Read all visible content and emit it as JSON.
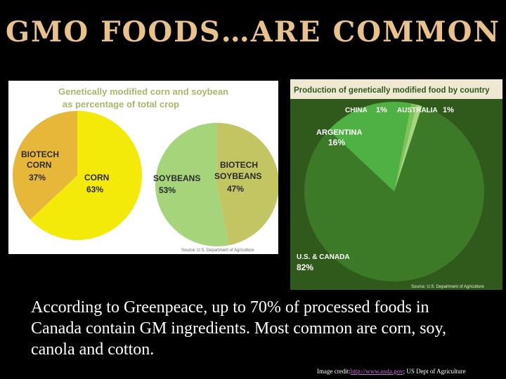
{
  "slide": {
    "title": "GMO FOODS…ARE COMMON",
    "body": "According to Greenpeace, up to 70% of processed foods in Canada contain GM ingredients.  Most common are corn, soy, canola and cotton.",
    "credit_prefix": "Image credit:",
    "credit_link": "http://www.usda.gov",
    "credit_suffix": "; US Dept of Agriculture"
  },
  "chart_data": [
    {
      "type": "pie",
      "title": "Genetically modified corn and soybean",
      "subtitle": "as percentage of total crop",
      "crop": "CORN",
      "slices": [
        {
          "label": "CORN",
          "value": 63,
          "value_label": "63%",
          "color": "#f4ea0a"
        },
        {
          "label": "BIOTECH CORN",
          "label_lines": [
            "BIOTECH",
            "CORN"
          ],
          "value": 37,
          "value_label": "37%",
          "color": "#e7b73a"
        }
      ]
    },
    {
      "type": "pie",
      "crop": "SOYBEANS",
      "slices": [
        {
          "label": "SOYBEANS",
          "value": 53,
          "value_label": "53%",
          "color": "#a6d47b"
        },
        {
          "label": "BIOTECH SOYBEANS",
          "label_lines": [
            "BIOTECH",
            "SOYBEANS"
          ],
          "value": 47,
          "value_label": "47%",
          "color": "#c3c462"
        }
      ],
      "source": "Source: U.S. Department of Agriculture"
    },
    {
      "type": "pie",
      "title": "Production of genetically modified food by country",
      "slices": [
        {
          "label": "U.S. & CANADA",
          "value": 82,
          "value_label": "82%",
          "color": "#3c7a28"
        },
        {
          "label": "ARGENTINA",
          "value": 16,
          "value_label": "16%",
          "color": "#4fb043"
        },
        {
          "label": "CHINA",
          "value": 1,
          "value_label": "1%",
          "color": "#7ac45a"
        },
        {
          "label": "AUSTRALIA",
          "value": 1,
          "value_label": "1%",
          "color": "#a4d680"
        }
      ],
      "source": "Source: U.S. Department of Agriculture"
    }
  ]
}
